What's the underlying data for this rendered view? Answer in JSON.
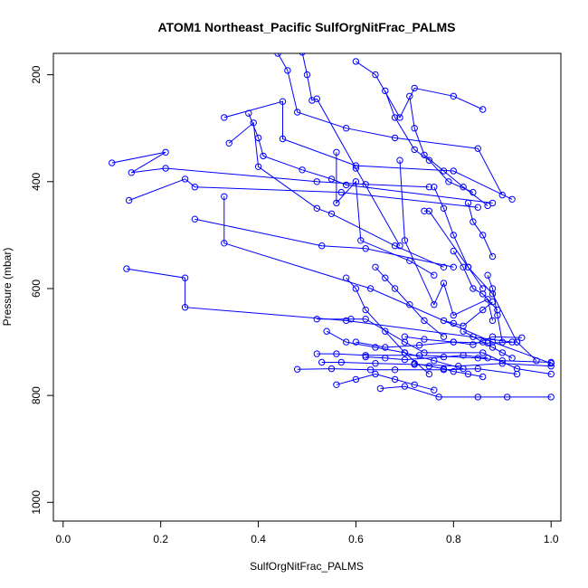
{
  "chart_data": {
    "type": "line",
    "title": "ATOM1 Northeast_Pacific SulfOrgNitFrac_PALMS",
    "xlabel": "SulfOrgNitFrac_PALMS",
    "ylabel": "Pressure (mbar)",
    "xlim": [
      -0.02,
      1.02
    ],
    "ylim": [
      1035,
      160
    ],
    "y_reversed": true,
    "xticks": [
      0.0,
      0.2,
      0.4,
      0.6,
      0.8,
      1.0
    ],
    "xtick_labels": [
      "0.0",
      "0.2",
      "0.4",
      "0.6",
      "0.8",
      "1.0"
    ],
    "yticks": [
      200,
      400,
      600,
      800,
      1000
    ],
    "ytick_labels": [
      "200",
      "400",
      "600",
      "800",
      "1000"
    ],
    "color": "#0000ff",
    "grid": false,
    "marker": "open-circle",
    "series": [
      {
        "x": [
          0.1,
          0.21,
          0.14,
          0.21,
          0.52,
          0.62,
          0.75
        ],
        "y": [
          365,
          345,
          383,
          375,
          400,
          405,
          410
        ]
      },
      {
        "x": [
          0.135,
          0.25,
          0.27,
          0.57,
          0.85
        ],
        "y": [
          435,
          395,
          410,
          420,
          448
        ]
      },
      {
        "x": [
          0.13,
          0.25,
          0.25,
          0.58,
          0.92
        ],
        "y": [
          563,
          580,
          635,
          660,
          700
        ]
      },
      {
        "x": [
          0.33,
          0.33,
          0.63,
          0.88,
          1.0
        ],
        "y": [
          428,
          515,
          600,
          700,
          740
        ]
      },
      {
        "x": [
          0.27,
          0.53,
          0.62,
          0.8
        ],
        "y": [
          470,
          520,
          525,
          560
        ]
      },
      {
        "x": [
          0.33,
          0.45,
          0.45,
          0.6,
          0.8,
          0.92
        ],
        "y": [
          280,
          250,
          320,
          370,
          380,
          433
        ]
      },
      {
        "x": [
          0.34,
          0.39,
          0.4,
          0.52,
          0.55,
          0.68,
          0.78
        ],
        "y": [
          328,
          290,
          372,
          450,
          460,
          520,
          560
        ]
      },
      {
        "x": [
          0.38,
          0.4,
          0.41,
          0.49,
          0.55,
          0.58,
          0.88
        ],
        "y": [
          272,
          318,
          352,
          378,
          395,
          406,
          440
        ]
      },
      {
        "x": [
          0.44,
          0.46,
          0.48,
          0.58,
          0.68,
          0.85,
          0.9
        ],
        "y": [
          160,
          192,
          270,
          300,
          318,
          338,
          425
        ]
      },
      {
        "x": [
          0.49,
          0.5,
          0.51,
          0.52,
          0.6,
          0.69
        ],
        "y": [
          158,
          200,
          248,
          245,
          375,
          520
        ]
      },
      {
        "x": [
          0.56,
          0.56,
          0.6,
          0.61,
          0.71,
          0.76
        ],
        "y": [
          345,
          440,
          400,
          510,
          548,
          575
        ]
      },
      {
        "x": [
          0.6,
          0.64,
          0.69,
          0.72,
          0.8,
          0.86
        ],
        "y": [
          175,
          200,
          280,
          225,
          240,
          265
        ]
      },
      {
        "x": [
          0.69,
          0.7,
          0.76,
          0.78,
          0.8,
          0.87,
          0.88
        ],
        "y": [
          360,
          510,
          630,
          590,
          650,
          620,
          660
        ]
      },
      {
        "x": [
          0.74,
          0.75,
          0.83,
          0.88,
          0.93,
          0.97
        ],
        "y": [
          455,
          455,
          560,
          610,
          700,
          735
        ]
      },
      {
        "x": [
          0.52,
          0.59,
          0.62,
          0.7,
          0.74,
          0.86,
          0.93,
          1.0
        ],
        "y": [
          657,
          657,
          657,
          700,
          720,
          720,
          750,
          760
        ]
      },
      {
        "x": [
          0.52,
          0.56,
          0.62,
          0.73,
          0.85,
          0.9,
          1.0
        ],
        "y": [
          722,
          722,
          725,
          725,
          730,
          735,
          738
        ]
      },
      {
        "x": [
          0.48,
          0.55,
          0.63,
          0.68,
          0.78,
          0.85,
          0.93
        ],
        "y": [
          751,
          750,
          752,
          752,
          752,
          750,
          760
        ]
      },
      {
        "x": [
          0.53,
          0.57,
          0.64,
          0.72,
          0.81,
          0.9,
          1.0
        ],
        "y": [
          738,
          738,
          740,
          742,
          745,
          740,
          745
        ]
      },
      {
        "x": [
          0.65,
          0.7,
          0.77,
          0.85,
          0.91,
          1.0
        ],
        "y": [
          787,
          783,
          803,
          803,
          803,
          803
        ]
      },
      {
        "x": [
          0.6,
          0.66,
          0.73,
          0.8,
          0.87,
          0.93
        ],
        "y": [
          700,
          710,
          706,
          700,
          702,
          700
        ]
      },
      {
        "x": [
          0.7,
          0.74,
          0.8,
          0.84,
          0.88,
          0.94
        ],
        "y": [
          690,
          695,
          700,
          705,
          690,
          692
        ]
      },
      {
        "x": [
          0.62,
          0.66,
          0.7,
          0.78,
          0.82,
          0.87
        ],
        "y": [
          728,
          730,
          733,
          728,
          725,
          730
        ]
      },
      {
        "x": [
          0.78,
          0.8,
          0.82,
          0.86,
          0.88
        ],
        "y": [
          660,
          665,
          670,
          640,
          625
        ]
      },
      {
        "x": [
          0.8,
          0.82,
          0.84,
          0.86,
          0.89
        ],
        "y": [
          530,
          560,
          600,
          610,
          640
        ]
      },
      {
        "x": [
          0.76,
          0.78,
          0.8,
          0.83,
          0.86
        ],
        "y": [
          410,
          450,
          500,
          560,
          600
        ]
      },
      {
        "x": [
          0.71,
          0.72,
          0.74,
          0.78,
          0.82,
          0.87
        ],
        "y": [
          240,
          300,
          350,
          380,
          410,
          445
        ]
      },
      {
        "x": [
          0.66,
          0.68,
          0.72,
          0.75,
          0.79,
          0.84
        ],
        "y": [
          230,
          280,
          340,
          360,
          400,
          420
        ]
      },
      {
        "x": [
          0.83,
          0.84,
          0.86,
          0.88
        ],
        "y": [
          440,
          475,
          500,
          540
        ]
      },
      {
        "x": [
          0.87,
          0.88,
          0.89,
          0.9
        ],
        "y": [
          575,
          600,
          650,
          700
        ]
      },
      {
        "x": [
          0.58,
          0.6,
          0.62,
          0.66,
          0.7,
          0.75
        ],
        "y": [
          580,
          600,
          640,
          680,
          720,
          760
        ]
      },
      {
        "x": [
          0.64,
          0.66,
          0.68,
          0.71,
          0.74,
          0.78
        ],
        "y": [
          560,
          580,
          600,
          630,
          660,
          690
        ]
      },
      {
        "x": [
          0.54,
          0.58,
          0.64,
          0.7,
          0.76,
          0.82
        ],
        "y": [
          680,
          700,
          710,
          720,
          735,
          750
        ]
      },
      {
        "x": [
          0.56,
          0.6,
          0.64,
          0.68,
          0.72,
          0.76
        ],
        "y": [
          780,
          770,
          760,
          770,
          780,
          790
        ]
      },
      {
        "x": [
          0.82,
          0.84,
          0.86,
          0.88,
          0.9,
          0.92
        ],
        "y": [
          680,
          690,
          700,
          710,
          720,
          730
        ]
      },
      {
        "x": [
          0.72,
          0.75,
          0.78,
          0.8,
          0.83,
          0.86
        ],
        "y": [
          740,
          745,
          750,
          755,
          760,
          765
        ]
      }
    ]
  }
}
